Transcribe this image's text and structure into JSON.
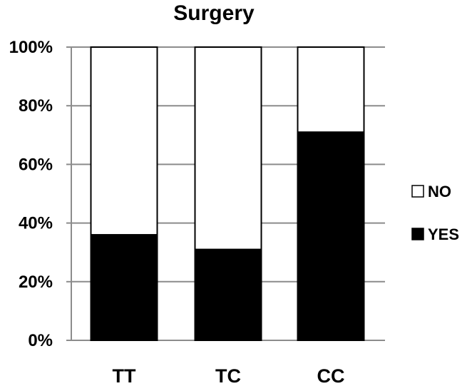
{
  "chart_data": {
    "type": "bar",
    "stacked": true,
    "title": "Surgery",
    "xlabel": "",
    "ylabel": "",
    "categories": [
      "TT",
      "TC",
      "CC"
    ],
    "series": [
      {
        "name": "YES",
        "values": [
          36,
          31,
          71
        ],
        "color": "#000000"
      },
      {
        "name": "NO",
        "values": [
          64,
          69,
          29
        ],
        "color": "#ffffff"
      }
    ],
    "ylim": [
      0,
      100
    ],
    "yticks": [
      0,
      20,
      40,
      60,
      80,
      100
    ],
    "ytick_labels": [
      "0%",
      "20%",
      "40%",
      "60%",
      "80%",
      "100%"
    ],
    "grid": true,
    "legend": {
      "placement": "right",
      "entries": [
        {
          "label": "NO",
          "color": "#ffffff"
        },
        {
          "label": "YES",
          "color": "#000000"
        }
      ]
    }
  }
}
